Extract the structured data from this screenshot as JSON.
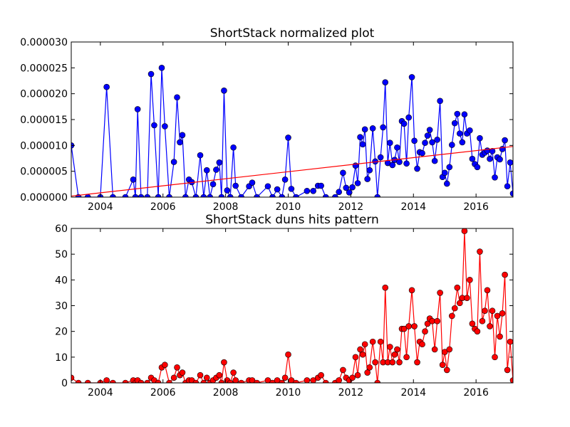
{
  "chart_data": [
    {
      "type": "line",
      "title": "ShortStack normalized plot",
      "color": "#0000ff",
      "x": [
        2003.07,
        2003.3,
        2003.6,
        2004.0,
        2004.2,
        2004.4,
        2004.8,
        2005.05,
        2005.12,
        2005.19,
        2005.3,
        2005.5,
        2005.62,
        2005.72,
        2005.85,
        2005.96,
        2006.06,
        2006.2,
        2006.35,
        2006.45,
        2006.54,
        2006.62,
        2006.72,
        2006.83,
        2006.92,
        2007.05,
        2007.19,
        2007.3,
        2007.4,
        2007.5,
        2007.6,
        2007.7,
        2007.8,
        2007.87,
        2007.95,
        2008.05,
        2008.15,
        2008.25,
        2008.32,
        2008.5,
        2008.75,
        2008.85,
        2009.0,
        2009.35,
        2009.5,
        2009.65,
        2009.8,
        2009.9,
        2010.0,
        2010.1,
        2010.25,
        2010.6,
        2010.8,
        2010.95,
        2011.05,
        2011.2,
        2011.5,
        2011.62,
        2011.75,
        2011.85,
        2011.95,
        2012.05,
        2012.15,
        2012.22,
        2012.3,
        2012.38,
        2012.45,
        2012.53,
        2012.6,
        2012.7,
        2012.78,
        2012.85,
        2012.95,
        2013.03,
        2013.1,
        2013.18,
        2013.25,
        2013.33,
        2013.4,
        2013.48,
        2013.55,
        2013.63,
        2013.7,
        2013.78,
        2013.85,
        2013.95,
        2014.03,
        2014.12,
        2014.2,
        2014.28,
        2014.37,
        2014.45,
        2014.52,
        2014.6,
        2014.68,
        2014.76,
        2014.85,
        2014.93,
        2015.0,
        2015.07,
        2015.15,
        2015.23,
        2015.32,
        2015.4,
        2015.48,
        2015.56,
        2015.63,
        2015.71,
        2015.8,
        2015.88,
        2015.96,
        2016.04,
        2016.12,
        2016.2,
        2016.28,
        2016.36,
        2016.44,
        2016.52,
        2016.6,
        2016.68,
        2016.76,
        2016.84,
        2016.92,
        2017.0,
        2017.09,
        2017.18
      ],
      "values": [
        1e-05,
        0,
        0,
        0,
        2.13e-05,
        0,
        0,
        3.4e-06,
        0,
        1.7e-05,
        0,
        0,
        2.38e-05,
        1.39e-05,
        0,
        2.5e-05,
        1.37e-05,
        0,
        6.8e-06,
        1.93e-05,
        1.06e-05,
        1.2e-05,
        0,
        3.4e-06,
        2.9e-06,
        0,
        8.1e-06,
        0,
        5.2e-06,
        0,
        2.5e-06,
        5.3e-06,
        6.7e-06,
        0,
        2.06e-05,
        1.3e-06,
        0,
        9.6e-06,
        2.2e-06,
        0,
        2.1e-06,
        2.8e-06,
        0,
        2.1e-06,
        0,
        1.5e-06,
        0,
        3.4e-06,
        1.15e-05,
        1.6e-06,
        0,
        1.2e-06,
        1.2e-06,
        2.2e-06,
        2.2e-06,
        0,
        0,
        1e-06,
        4.7e-06,
        1.8e-06,
        9e-07,
        1.9e-06,
        6.1e-06,
        2.7e-06,
        1.16e-05,
        1.02e-05,
        1.31e-05,
        3.5e-06,
        5.2e-06,
        1.33e-05,
        6.9e-06,
        0,
        7.7e-06,
        1.35e-05,
        2.22e-05,
        6.6e-06,
        1.05e-05,
        6.2e-06,
        7.2e-06,
        9.6e-06,
        6.8e-06,
        1.47e-05,
        1.42e-05,
        6.5e-06,
        1.54e-05,
        2.32e-05,
        1.09e-05,
        5.5e-06,
        8.7e-06,
        8.5e-06,
        1.05e-05,
        1.19e-05,
        1.3e-05,
        1.06e-05,
        7e-06,
        1.11e-05,
        1.86e-05,
        3.9e-06,
        4.7e-06,
        2.6e-06,
        5.8e-06,
        1.01e-05,
        1.43e-05,
        1.61e-05,
        1.23e-05,
        1.06e-05,
        1.6e-05,
        1.23e-05,
        1.29e-05,
        7.4e-06,
        6.4e-06,
        5.8e-06,
        1.14e-05,
        8.2e-06,
        8.6e-06,
        9e-06,
        7.4e-06,
        8.9e-06,
        3.8e-06,
        7.7e-06,
        7.3e-06,
        9.3e-06,
        1.1e-05,
        2.1e-06,
        6.7e-06,
        7e-07
      ],
      "trend": {
        "color": "#ff0000",
        "x": [
          2003.07,
          2017.18
        ],
        "values": [
          2e-07,
          9.8e-06
        ]
      },
      "xlim": [
        2003.07,
        2017.18
      ],
      "xticks": [
        2004,
        2006,
        2008,
        2010,
        2012,
        2014,
        2016
      ],
      "ylim": [
        0,
        3e-05
      ],
      "yticks": [
        {
          "value": 0,
          "label": "0.000000"
        },
        {
          "value": 5e-06,
          "label": "0.000005"
        },
        {
          "value": 1e-05,
          "label": "0.000010"
        },
        {
          "value": 1.5e-05,
          "label": "0.000015"
        },
        {
          "value": 2e-05,
          "label": "0.000020"
        },
        {
          "value": 2.5e-05,
          "label": "0.000025"
        },
        {
          "value": 3e-05,
          "label": "0.000030"
        }
      ]
    },
    {
      "type": "line",
      "title": "ShortStack duns hits pattern",
      "color": "#ff0000",
      "x": [
        2003.07,
        2003.3,
        2003.6,
        2004.0,
        2004.2,
        2004.4,
        2004.8,
        2005.05,
        2005.12,
        2005.19,
        2005.3,
        2005.5,
        2005.62,
        2005.72,
        2005.85,
        2005.96,
        2006.06,
        2006.2,
        2006.35,
        2006.45,
        2006.54,
        2006.62,
        2006.72,
        2006.83,
        2006.92,
        2007.05,
        2007.19,
        2007.3,
        2007.4,
        2007.5,
        2007.6,
        2007.7,
        2007.8,
        2007.87,
        2007.95,
        2008.05,
        2008.15,
        2008.25,
        2008.32,
        2008.5,
        2008.75,
        2008.85,
        2009.0,
        2009.35,
        2009.5,
        2009.65,
        2009.8,
        2009.9,
        2010.0,
        2010.1,
        2010.25,
        2010.6,
        2010.8,
        2010.95,
        2011.05,
        2011.2,
        2011.5,
        2011.62,
        2011.75,
        2011.85,
        2011.95,
        2012.05,
        2012.15,
        2012.22,
        2012.3,
        2012.38,
        2012.45,
        2012.53,
        2012.6,
        2012.7,
        2012.78,
        2012.85,
        2012.95,
        2013.03,
        2013.1,
        2013.18,
        2013.25,
        2013.33,
        2013.4,
        2013.48,
        2013.55,
        2013.63,
        2013.7,
        2013.78,
        2013.85,
        2013.95,
        2014.03,
        2014.12,
        2014.2,
        2014.28,
        2014.37,
        2014.45,
        2014.52,
        2014.6,
        2014.68,
        2014.76,
        2014.85,
        2014.93,
        2015.0,
        2015.07,
        2015.15,
        2015.23,
        2015.32,
        2015.4,
        2015.48,
        2015.56,
        2015.63,
        2015.71,
        2015.8,
        2015.88,
        2015.96,
        2016.04,
        2016.12,
        2016.2,
        2016.28,
        2016.36,
        2016.44,
        2016.52,
        2016.6,
        2016.68,
        2016.76,
        2016.84,
        2016.92,
        2017.0,
        2017.09,
        2017.18
      ],
      "values": [
        2,
        0,
        0,
        0,
        1,
        0,
        0,
        1,
        0,
        1,
        0,
        0,
        2,
        1,
        0,
        6,
        7,
        0,
        2,
        6,
        3,
        4,
        0,
        1,
        1,
        0,
        3,
        0,
        2,
        0,
        1,
        2,
        3,
        0,
        8,
        1,
        0,
        4,
        1,
        0,
        1,
        1,
        0,
        1,
        0,
        1,
        0,
        2,
        11,
        1,
        0,
        1,
        1,
        2,
        3,
        0,
        0,
        1,
        5,
        2,
        1,
        2,
        10,
        3,
        13,
        11,
        15,
        4,
        6,
        16,
        8,
        0,
        16,
        8,
        37,
        8,
        14,
        8,
        11,
        13,
        8,
        21,
        21,
        10,
        22,
        36,
        22,
        8,
        16,
        15,
        20,
        23,
        25,
        24,
        13,
        24,
        35,
        7,
        12,
        5,
        13,
        26,
        29,
        37,
        31,
        33,
        59,
        33,
        40,
        23,
        21,
        20,
        51,
        24,
        28,
        36,
        22,
        28,
        10,
        26,
        18,
        27,
        42,
        5,
        16,
        1
      ],
      "xlim": [
        2003.07,
        2017.18
      ],
      "xticks": [
        2004,
        2006,
        2008,
        2010,
        2012,
        2014,
        2016
      ],
      "ylim": [
        0,
        60
      ],
      "yticks": [
        0,
        10,
        20,
        30,
        40,
        50,
        60
      ]
    }
  ]
}
